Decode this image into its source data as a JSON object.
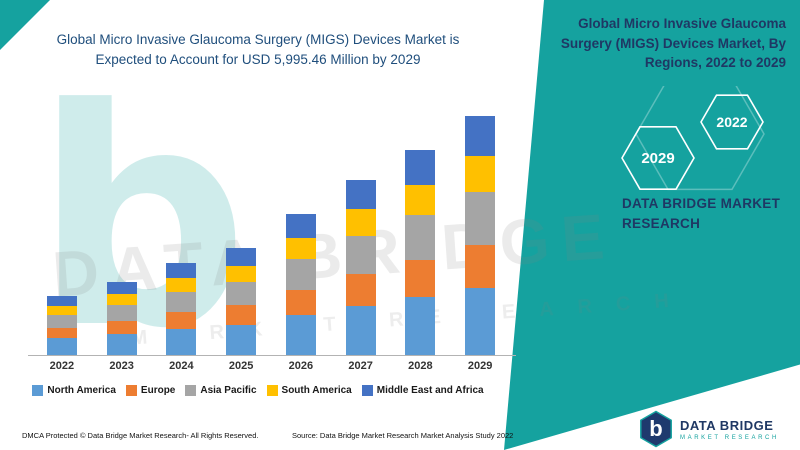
{
  "chart_data": {
    "type": "bar",
    "stacked": true,
    "title": "Global Micro Invasive Glaucoma Surgery (MIGS) Devices Market is Expected to Account for  USD 5,995.46 Million by 2029",
    "xlabel": "",
    "ylabel": "",
    "unit": "USD Million",
    "categories": [
      "2022",
      "2023",
      "2024",
      "2025",
      "2026",
      "2027",
      "2028",
      "2029"
    ],
    "series": [
      {
        "name": "North America",
        "color": "#5B9BD5",
        "values": [
          420,
          520,
          650,
          760,
          1000,
          1240,
          1450,
          1690
        ]
      },
      {
        "name": "Europe",
        "color": "#ED7D31",
        "values": [
          265,
          330,
          420,
          485,
          640,
          790,
          925,
          1080
        ]
      },
      {
        "name": "Asia Pacific",
        "color": "#A5A5A5",
        "values": [
          320,
          405,
          510,
          590,
          780,
          970,
          1130,
          1320
        ]
      },
      {
        "name": "South America",
        "color": "#FFC000",
        "values": [
          220,
          275,
          350,
          405,
          530,
          660,
          770,
          900
        ]
      },
      {
        "name": "Middle East and Africa",
        "color": "#4472C4",
        "values": [
          245,
          305,
          395,
          450,
          600,
          740,
          865,
          1005
        ]
      }
    ],
    "totals": [
      1470,
      1835,
      2325,
      2690,
      3550,
      4400,
      5140,
      5995
    ],
    "ylim": [
      0,
      6200
    ],
    "grid": false,
    "legend_position": "bottom"
  },
  "right_panel": {
    "title": "Global Micro Invasive Glaucoma Surgery (MIGS) Devices Market, By Regions, 2022 to 2029",
    "hex_year_front": "2029",
    "hex_year_back": "2022",
    "brand_line": "DATA BRIDGE MARKET RESEARCH"
  },
  "watermark": {
    "primary": "DATA BRIDGE",
    "secondary": "MARKET RESEARCH",
    "glyph": "b"
  },
  "footer": {
    "dmca": "DMCA Protected © Data Bridge Market Research- All Rights Reserved.",
    "source": "Source: Data Bridge Market Research Market Analysis Study 2022"
  },
  "logo": {
    "initial": "b",
    "name": "DATA BRIDGE",
    "tagline": "MARKET RESEARCH"
  },
  "colors": {
    "teal": "#15A29F",
    "navy": "#1F3864",
    "title_blue": "#1F4E7C",
    "axis_gray": "#B3B3B3"
  }
}
